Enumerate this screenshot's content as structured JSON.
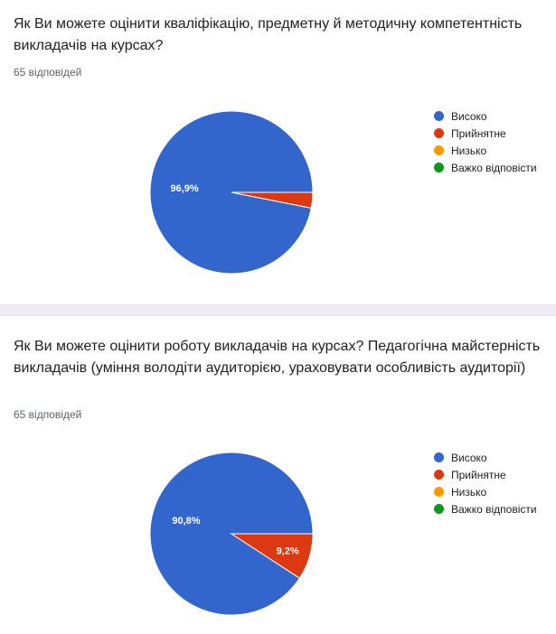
{
  "colors": {
    "high": "#3366cc",
    "acceptable": "#dc3912",
    "low": "#ff9900",
    "hard": "#109618"
  },
  "questions": [
    {
      "title": "Як Ви можете оцінити кваліфікацію, предметну й методичну компетентність викладачів на курсах?",
      "responses": "65 відповідей"
    },
    {
      "title": "Як Ви можете оцінити роботу викладачів на курсах? Педагогічна майстерність викладачів (уміння володіти аудиторією, ураховувати особливість аудиторії)",
      "responses": "65 відповідей"
    }
  ],
  "chart_data": [
    {
      "type": "pie",
      "categories": [
        "Високо",
        "Прийнятне",
        "Низько",
        "Важко відповісти"
      ],
      "values": [
        96.9,
        3.1,
        0,
        0
      ],
      "labels": [
        "96,9%",
        "",
        "",
        ""
      ],
      "colors": [
        "#3366cc",
        "#dc3912",
        "#ff9900",
        "#109618"
      ],
      "legend": "right"
    },
    {
      "type": "pie",
      "categories": [
        "Високо",
        "Прийнятне",
        "Низько",
        "Важко відповісти"
      ],
      "values": [
        90.8,
        9.2,
        0,
        0
      ],
      "labels": [
        "90,8%",
        "9,2%",
        "",
        ""
      ],
      "colors": [
        "#3366cc",
        "#dc3912",
        "#ff9900",
        "#109618"
      ],
      "legend": "right"
    }
  ]
}
